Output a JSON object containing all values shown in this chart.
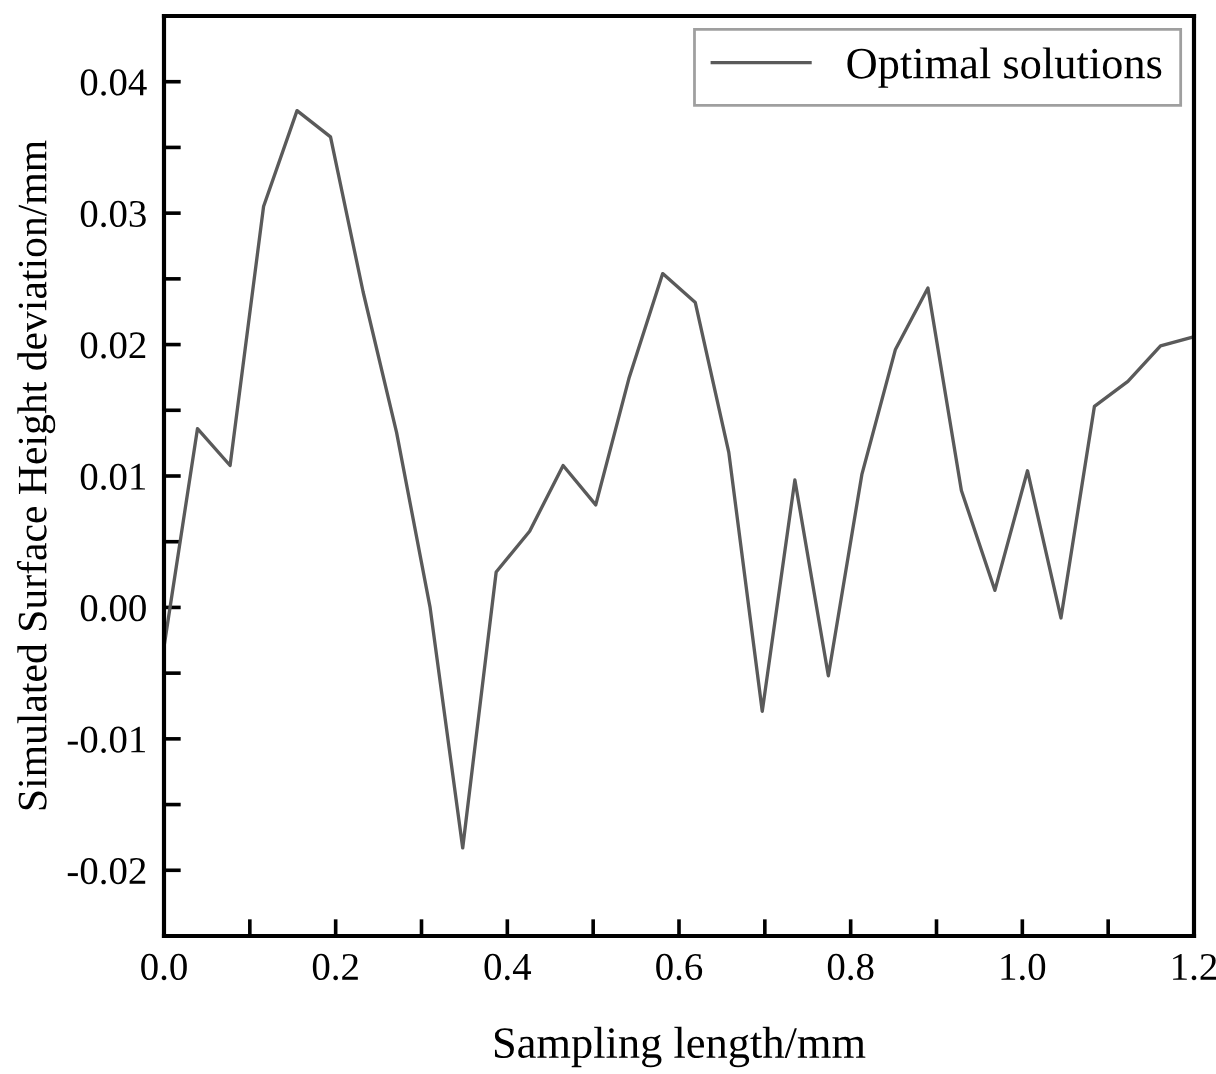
{
  "chart_data": {
    "type": "line",
    "xlabel": "Sampling length/mm",
    "ylabel": "Simulated Surface Height deviation/mm",
    "series": [
      {
        "name": "Optimal solutions",
        "color": "#5a5a5a",
        "x": [
          0,
          0.039,
          0.077,
          0.116,
          0.155,
          0.194,
          0.232,
          0.271,
          0.31,
          0.348,
          0.387,
          0.426,
          0.465,
          0.503,
          0.542,
          0.581,
          0.619,
          0.658,
          0.697,
          0.735,
          0.774,
          0.813,
          0.852,
          0.89,
          0.929,
          0.968,
          1.006,
          1.045,
          1.084,
          1.123,
          1.161,
          1.2
        ],
        "values": [
          -0.003,
          0.0136,
          0.0108,
          0.0305,
          0.0378,
          0.0358,
          0.024,
          0.0133,
          0.0,
          -0.0183,
          0.0027,
          0.0058,
          0.0108,
          0.0078,
          0.0175,
          0.0254,
          0.0232,
          0.0118,
          -0.0079,
          0.0097,
          -0.0052,
          0.0101,
          0.0196,
          0.0243,
          0.0089,
          0.0013,
          0.0104,
          -0.0008,
          0.0153,
          0.0172,
          0.0199,
          0.0206
        ]
      }
    ],
    "xlim": [
      0,
      1.2
    ],
    "ylim": [
      -0.025,
      0.045
    ],
    "xticks": [
      {
        "value": 0,
        "label": "0.0"
      },
      {
        "value": 0.1,
        "label": null
      },
      {
        "value": 0.2,
        "label": "0.2"
      },
      {
        "value": 0.3,
        "label": null
      },
      {
        "value": 0.4,
        "label": "0.4"
      },
      {
        "value": 0.5,
        "label": null
      },
      {
        "value": 0.6,
        "label": "0.6"
      },
      {
        "value": 0.7,
        "label": null
      },
      {
        "value": 0.8,
        "label": "0.8"
      },
      {
        "value": 0.9,
        "label": null
      },
      {
        "value": 1.0,
        "label": "1.0"
      },
      {
        "value": 1.1,
        "label": null
      },
      {
        "value": 1.2,
        "label": "1.2"
      }
    ],
    "yticks": [
      {
        "value": -0.02,
        "label": "-0.02"
      },
      {
        "value": -0.015,
        "label": null
      },
      {
        "value": -0.01,
        "label": "-0.01"
      },
      {
        "value": -0.005,
        "label": null
      },
      {
        "value": 0,
        "label": "0.00"
      },
      {
        "value": 0.005,
        "label": null
      },
      {
        "value": 0.01,
        "label": "0.01"
      },
      {
        "value": 0.015,
        "label": null
      },
      {
        "value": 0.02,
        "label": "0.02"
      },
      {
        "value": 0.025,
        "label": null
      },
      {
        "value": 0.03,
        "label": "0.03"
      },
      {
        "value": 0.035,
        "label": null
      },
      {
        "value": 0.04,
        "label": "0.04"
      }
    ],
    "grid": false,
    "legend": "top right",
    "marker": "none",
    "line_style": "solid"
  }
}
